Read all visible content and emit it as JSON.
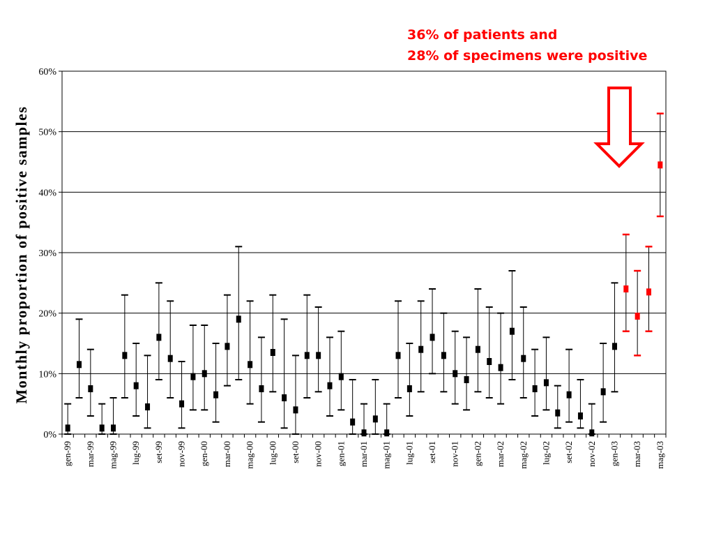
{
  "chart_data": {
    "type": "errorbar",
    "ylabel": "Monthly proportion of positive samples",
    "xlabel": "",
    "ylim": [
      0,
      60
    ],
    "yticks": [
      "0%",
      "10%",
      "20%",
      "30%",
      "40%",
      "50%",
      "60%"
    ],
    "grid": true,
    "annotation": {
      "line1": "36% of patients and",
      "line2": "28% of specimens were positive"
    },
    "colors": {
      "normal": "#000000",
      "highlight": "#ff0000",
      "annotation": "#ff0000",
      "arrow": "#ff0000"
    },
    "points": [
      {
        "label": "gen-99",
        "value": 1,
        "low": 0,
        "high": 5
      },
      {
        "label": "",
        "value": 11.5,
        "low": 6,
        "high": 19
      },
      {
        "label": "mar-99",
        "value": 7.5,
        "low": 3,
        "high": 14
      },
      {
        "label": "",
        "value": 1,
        "low": 0,
        "high": 5
      },
      {
        "label": "mag-99",
        "value": 1,
        "low": 0,
        "high": 6
      },
      {
        "label": "",
        "value": 13,
        "low": 6,
        "high": 23
      },
      {
        "label": "lug-99",
        "value": 8,
        "low": 3,
        "high": 15
      },
      {
        "label": "",
        "value": 4.5,
        "low": 1,
        "high": 13
      },
      {
        "label": "set-99",
        "value": 16,
        "low": 9,
        "high": 25
      },
      {
        "label": "",
        "value": 12.5,
        "low": 6,
        "high": 22
      },
      {
        "label": "nov-99",
        "value": 5,
        "low": 1,
        "high": 12
      },
      {
        "label": "",
        "value": 9.5,
        "low": 4,
        "high": 18
      },
      {
        "label": "gen-00",
        "value": 10,
        "low": 4,
        "high": 18
      },
      {
        "label": "",
        "value": 6.5,
        "low": 2,
        "high": 15
      },
      {
        "label": "mar-00",
        "value": 14.5,
        "low": 8,
        "high": 23
      },
      {
        "label": "",
        "value": 19,
        "low": 9,
        "high": 31
      },
      {
        "label": "mag-00",
        "value": 11.5,
        "low": 5,
        "high": 22
      },
      {
        "label": "",
        "value": 7.5,
        "low": 2,
        "high": 16
      },
      {
        "label": "lug-00",
        "value": 13.5,
        "low": 7,
        "high": 23
      },
      {
        "label": "",
        "value": 6,
        "low": 1,
        "high": 19
      },
      {
        "label": "set-00",
        "value": 4,
        "low": 0,
        "high": 13
      },
      {
        "label": "",
        "value": 13,
        "low": 6,
        "high": 23
      },
      {
        "label": "nov-00",
        "value": 13,
        "low": 7,
        "high": 21
      },
      {
        "label": "",
        "value": 8,
        "low": 3,
        "high": 16
      },
      {
        "label": "gen-01",
        "value": 9.5,
        "low": 4,
        "high": 17
      },
      {
        "label": "",
        "value": 2,
        "low": 0,
        "high": 9
      },
      {
        "label": "mar-01",
        "value": 0.2,
        "low": 0,
        "high": 5
      },
      {
        "label": "",
        "value": 2.5,
        "low": 0,
        "high": 9
      },
      {
        "label": "mag-01",
        "value": 0.2,
        "low": 0,
        "high": 5
      },
      {
        "label": "",
        "value": 13,
        "low": 6,
        "high": 22
      },
      {
        "label": "lug-01",
        "value": 7.5,
        "low": 3,
        "high": 15
      },
      {
        "label": "",
        "value": 14,
        "low": 7,
        "high": 22
      },
      {
        "label": "set-01",
        "value": 16,
        "low": 10,
        "high": 24
      },
      {
        "label": "",
        "value": 13,
        "low": 7,
        "high": 20
      },
      {
        "label": "nov-01",
        "value": 10,
        "low": 5,
        "high": 17
      },
      {
        "label": "",
        "value": 9,
        "low": 4,
        "high": 16
      },
      {
        "label": "gen-02",
        "value": 14,
        "low": 7,
        "high": 24
      },
      {
        "label": "",
        "value": 12,
        "low": 6,
        "high": 21
      },
      {
        "label": "mar-02",
        "value": 11,
        "low": 5,
        "high": 20
      },
      {
        "label": "",
        "value": 17,
        "low": 9,
        "high": 27
      },
      {
        "label": "mag-02",
        "value": 12.5,
        "low": 6,
        "high": 21
      },
      {
        "label": "",
        "value": 7.5,
        "low": 3,
        "high": 14
      },
      {
        "label": "lug-02",
        "value": 8.5,
        "low": 4,
        "high": 16
      },
      {
        "label": "",
        "value": 3.5,
        "low": 1,
        "high": 8
      },
      {
        "label": "set-02",
        "value": 6.5,
        "low": 2,
        "high": 14
      },
      {
        "label": "",
        "value": 3,
        "low": 1,
        "high": 9
      },
      {
        "label": "nov-02",
        "value": 0.2,
        "low": 0,
        "high": 5
      },
      {
        "label": "",
        "value": 7,
        "low": 2,
        "high": 15
      },
      {
        "label": "gen-03",
        "value": 14.5,
        "low": 7,
        "high": 25
      },
      {
        "label": "",
        "value": 24,
        "low": 17,
        "high": 33,
        "highlight": true
      },
      {
        "label": "mar-03",
        "value": 19.5,
        "low": 13,
        "high": 27,
        "highlight": true
      },
      {
        "label": "",
        "value": 23.5,
        "low": 17,
        "high": 31,
        "highlight": true
      },
      {
        "label": "mag-03",
        "value": 44.5,
        "low": 36,
        "high": 53,
        "highlight": true
      }
    ]
  }
}
